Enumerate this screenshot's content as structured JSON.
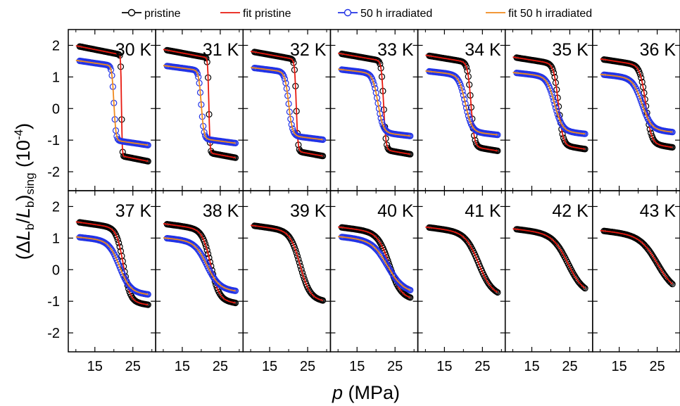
{
  "chart_data": {
    "type": "scatter",
    "layout": "small multiples grid, 2 rows x 7 columns, shared axes",
    "xlabel": {
      "italic": "p",
      "rest": " (MPa)"
    },
    "ylabel": {
      "open": "(Δ",
      "L1": "L",
      "sub1": "b",
      "slash": "/",
      "L2": "L",
      "sub2": "b",
      "close": ")",
      "sub3": "sing",
      "units": " (10",
      "exp": "-4",
      "units_close": ")"
    },
    "xlim": [
      8,
      31
    ],
    "ylim": [
      -2.6,
      2.5
    ],
    "xticks": [
      15,
      25
    ],
    "xtick_labels": [
      "15",
      "25"
    ],
    "yticks": [
      -2,
      -1,
      0,
      1,
      2
    ],
    "ytick_labels": [
      "-2",
      "-1",
      "0",
      "1",
      "2"
    ],
    "legend": {
      "position": "top",
      "entries": [
        {
          "label": "pristine",
          "style": "line+open-circle",
          "color": "#000000"
        },
        {
          "label": "fit pristine",
          "style": "line",
          "color": "#e8190f"
        },
        {
          "label": "50 h irradiated",
          "style": "line+open-circle",
          "color": "#2233e6"
        },
        {
          "label": "fit 50 h irradiated",
          "style": "line",
          "color": "#f08a1d"
        }
      ]
    },
    "panels": [
      {
        "label": "30 K",
        "pristine": {
          "start": 1.7,
          "end": -1.5,
          "center": 22,
          "width": 0.2,
          "x0": 11,
          "x1": 29
        },
        "irradiated": {
          "start": 1.35,
          "end": -1.0,
          "center": 20,
          "width": 0.55,
          "x0": 11,
          "x1": 29
        }
      },
      {
        "label": "31 K",
        "pristine": {
          "start": 1.6,
          "end": -1.4,
          "center": 22,
          "width": 0.3,
          "x0": 11,
          "x1": 29
        },
        "irradiated": {
          "start": 1.2,
          "end": -0.95,
          "center": 20,
          "width": 0.7,
          "x0": 11,
          "x1": 29
        }
      },
      {
        "label": "32 K",
        "pristine": {
          "start": 1.55,
          "end": -1.35,
          "center": 22,
          "width": 0.45,
          "x0": 11,
          "x1": 29
        },
        "irradiated": {
          "start": 1.15,
          "end": -0.85,
          "center": 20,
          "width": 1.0,
          "x0": 11,
          "x1": 29
        }
      },
      {
        "label": "33 K",
        "pristine": {
          "start": 1.5,
          "end": -1.3,
          "center": 22,
          "width": 0.6,
          "x0": 11,
          "x1": 29
        },
        "irradiated": {
          "start": 1.1,
          "end": -0.75,
          "center": 20.5,
          "width": 1.4,
          "x0": 11,
          "x1": 29
        }
      },
      {
        "label": "34 K",
        "pristine": {
          "start": 1.45,
          "end": -1.2,
          "center": 22,
          "width": 0.9,
          "x0": 11,
          "x1": 29
        },
        "irradiated": {
          "start": 1.05,
          "end": -0.72,
          "center": 20.5,
          "width": 1.7,
          "x0": 11,
          "x1": 29
        }
      },
      {
        "label": "35 K",
        "pristine": {
          "start": 1.4,
          "end": -1.15,
          "center": 22,
          "width": 1.2,
          "x0": 11,
          "x1": 29
        },
        "irradiated": {
          "start": 1.0,
          "end": -0.7,
          "center": 21,
          "width": 2.0,
          "x0": 11,
          "x1": 29
        }
      },
      {
        "label": "36 K",
        "pristine": {
          "start": 1.35,
          "end": -1.1,
          "center": 22,
          "width": 1.5,
          "x0": 11,
          "x1": 29
        },
        "irradiated": {
          "start": 0.95,
          "end": -0.65,
          "center": 21,
          "width": 2.4,
          "x0": 11,
          "x1": 29
        }
      },
      {
        "label": "37 K",
        "pristine": {
          "start": 1.3,
          "end": -1.0,
          "center": 22.5,
          "width": 1.8,
          "x0": 11,
          "x1": 29
        },
        "irradiated": {
          "start": 0.9,
          "end": -0.7,
          "center": 21.5,
          "width": 2.8,
          "x0": 11,
          "x1": 29
        }
      },
      {
        "label": "38 K",
        "pristine": {
          "start": 1.25,
          "end": -0.95,
          "center": 22.5,
          "width": 2.2,
          "x0": 11,
          "x1": 29
        },
        "irradiated": {
          "start": 0.88,
          "end": -0.6,
          "center": 21.5,
          "width": 3.2,
          "x0": 11,
          "x1": 29
        }
      },
      {
        "label": "39 K",
        "pristine": {
          "start": 1.2,
          "end": -0.9,
          "center": 23,
          "width": 2.6,
          "x0": 11,
          "x1": 29
        },
        "irradiated": null
      },
      {
        "label": "40 K",
        "pristine": {
          "start": 1.15,
          "end": -0.85,
          "center": 23.5,
          "width": 3.0,
          "x0": 11,
          "x1": 29
        },
        "irradiated": {
          "start": 0.9,
          "end": -0.65,
          "center": 23,
          "width": 4.0,
          "x0": 11,
          "x1": 29
        }
      },
      {
        "label": "41 K",
        "pristine": {
          "start": 1.15,
          "end": -0.75,
          "center": 24,
          "width": 3.5,
          "x0": 11,
          "x1": 29
        },
        "irradiated": null
      },
      {
        "label": "42 K",
        "pristine": {
          "start": 1.1,
          "end": -0.7,
          "center": 24.5,
          "width": 4.0,
          "x0": 11,
          "x1": 29
        },
        "irradiated": null
      },
      {
        "label": "43 K",
        "pristine": {
          "start": 1.05,
          "end": -0.65,
          "center": 25,
          "width": 4.5,
          "x0": 11,
          "x1": 29
        },
        "irradiated": null
      }
    ]
  }
}
